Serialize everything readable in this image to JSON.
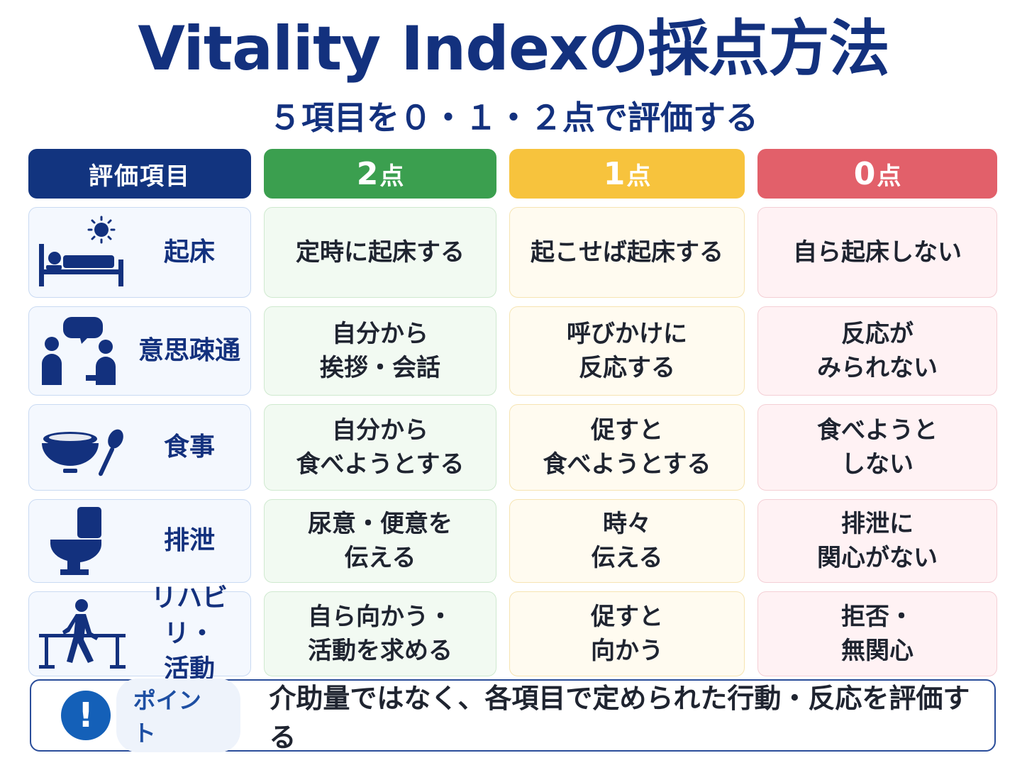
{
  "title": "Vitality Indexの採点方法",
  "subtitle": "５項目を０・１・２点で評価する",
  "headers": {
    "item": "評価項目",
    "score2_num": "2",
    "score2_unit": "点",
    "score1_num": "1",
    "score1_unit": "点",
    "score0_num": "0",
    "score0_unit": "点"
  },
  "rows": [
    {
      "icon": "bed-sun-icon",
      "label": [
        "起床"
      ],
      "s2": [
        "定時に起床する"
      ],
      "s1": [
        "起こせば起床する"
      ],
      "s0": [
        "自ら起床しない"
      ]
    },
    {
      "icon": "conversation-icon",
      "label": [
        "意思疎通"
      ],
      "s2": [
        "自分から",
        "挨拶・会話"
      ],
      "s1": [
        "呼びかけに",
        "反応する"
      ],
      "s0": [
        "反応が",
        "みられない"
      ]
    },
    {
      "icon": "rice-bowl-spoon-icon",
      "label": [
        "食事"
      ],
      "s2": [
        "自分から",
        "食べようとする"
      ],
      "s1": [
        "促すと",
        "食べようとする"
      ],
      "s0": [
        "食べようと",
        "しない"
      ]
    },
    {
      "icon": "toilet-icon",
      "label": [
        "排泄"
      ],
      "s2": [
        "尿意・便意を",
        "伝える"
      ],
      "s1": [
        "時々",
        "伝える"
      ],
      "s0": [
        "排泄に",
        "関心がない"
      ]
    },
    {
      "icon": "walking-parallel-bars-icon",
      "label": [
        "リハビリ・",
        "活動"
      ],
      "s2": [
        "自ら向かう・",
        "活動を求める"
      ],
      "s1": [
        "促すと",
        "向かう"
      ],
      "s0": [
        "拒否・",
        "無関心"
      ]
    }
  ],
  "point": {
    "icon": "exclamation-icon",
    "label": "ポイント",
    "text": "介助量ではなく、各項目で定められた行動・反応を評価する"
  },
  "colors": {
    "navy": "#13317e",
    "score2": "#3b9f4f",
    "score1": "#f7c33d",
    "score0": "#e2606a"
  }
}
